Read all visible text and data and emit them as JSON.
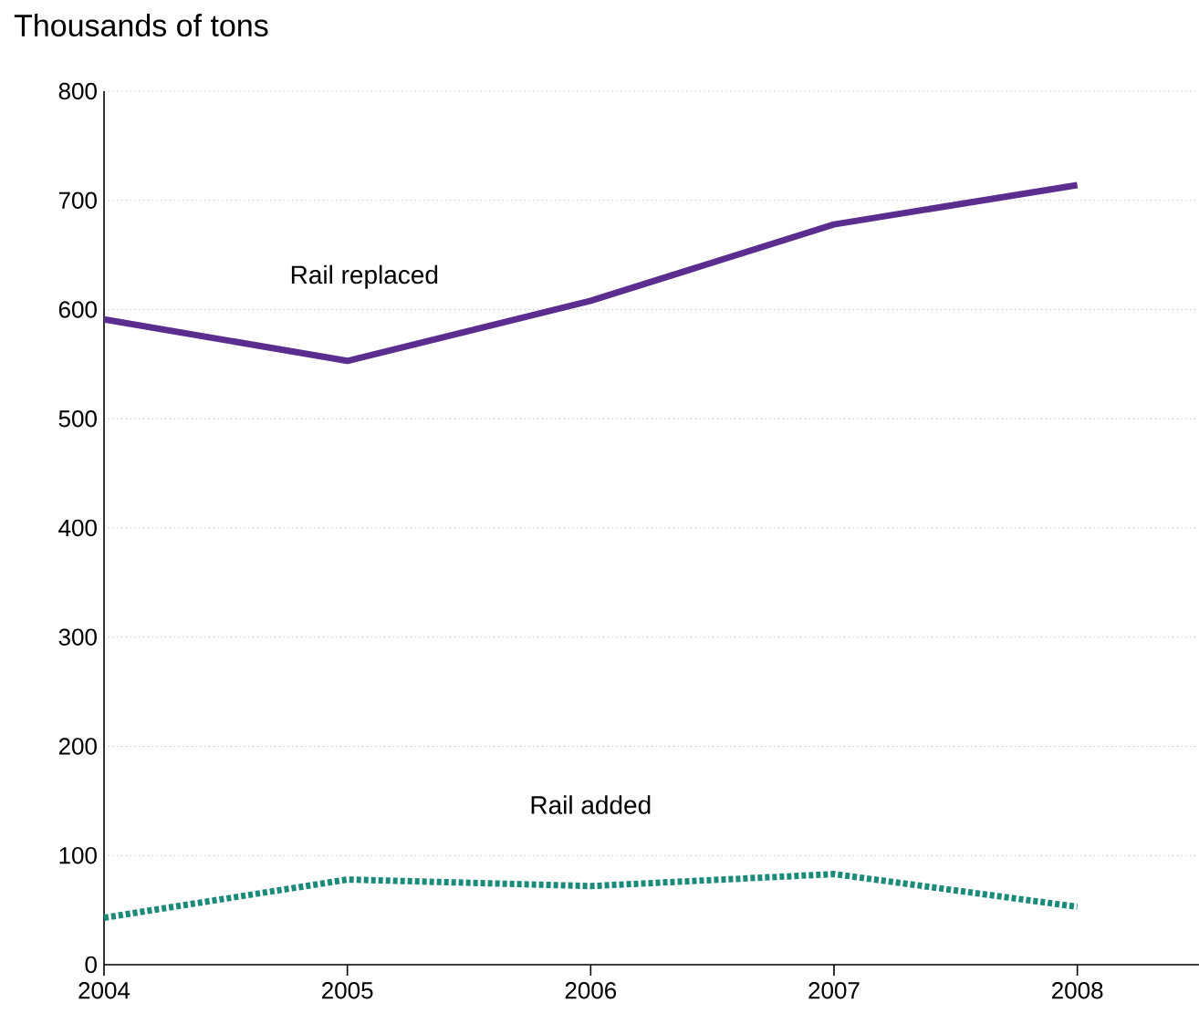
{
  "chart_data": {
    "type": "line",
    "ylabel": "Thousands of tons",
    "x": [
      2004,
      2005,
      2006,
      2007,
      2008
    ],
    "xlim": [
      2004,
      2008.5
    ],
    "xticks": [
      2004,
      2005,
      2006,
      2007,
      2008
    ],
    "ylim": [
      0,
      800
    ],
    "yticks": [
      0,
      100,
      200,
      300,
      400,
      500,
      600,
      700,
      800
    ],
    "grid": "y",
    "series": [
      {
        "name": "Rail replaced",
        "color": "#5b2d8e",
        "line_style": "solid",
        "values": [
          591,
          553,
          608,
          678,
          714
        ]
      },
      {
        "name": "Rail added",
        "color": "#1a8a7a",
        "line_style": "dotted",
        "values": [
          43,
          78,
          72,
          83,
          53
        ]
      }
    ]
  }
}
